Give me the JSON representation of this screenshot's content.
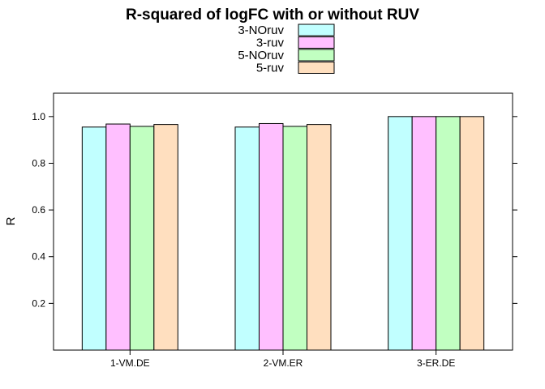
{
  "chart_data": {
    "type": "bar",
    "title": "R-squared of logFC with or without RUV",
    "xlabel": "",
    "ylabel": "R",
    "categories": [
      "1-VM.DE",
      "2-VM.ER",
      "3-ER.DE"
    ],
    "ylim": [
      0,
      1.1
    ],
    "yticks": [
      0.2,
      0.4,
      0.6,
      0.8,
      1.0
    ],
    "ytick_labels": [
      "0.2",
      "0.4",
      "0.6",
      "0.8",
      "1.0"
    ],
    "legend_placement": "top",
    "series": [
      {
        "name": "3-NOruv",
        "color": "#C1FFFF",
        "values": [
          0.955,
          0.955,
          1.0
        ]
      },
      {
        "name": "3-ruv",
        "color": "#FFBFFF",
        "values": [
          0.968,
          0.97,
          1.0
        ]
      },
      {
        "name": "5-NOruv",
        "color": "#C1FFC1",
        "values": [
          0.958,
          0.958,
          1.0
        ]
      },
      {
        "name": "5-ruv",
        "color": "#FFDFBF",
        "values": [
          0.966,
          0.966,
          1.0
        ]
      }
    ]
  }
}
